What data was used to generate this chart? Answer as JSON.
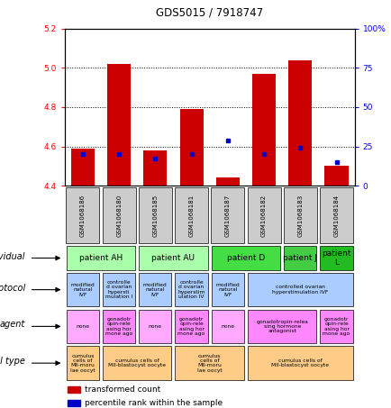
{
  "title": "GDS5015 / 7918747",
  "samples": [
    "GSM1068186",
    "GSM1068180",
    "GSM1068185",
    "GSM1068181",
    "GSM1068187",
    "GSM1068182",
    "GSM1068183",
    "GSM1068184"
  ],
  "bar_values": [
    4.59,
    5.02,
    4.58,
    4.79,
    4.44,
    4.97,
    5.04,
    4.5
  ],
  "bar_base": 4.4,
  "percentile_display": [
    20,
    20,
    17,
    20,
    29,
    20,
    24,
    15
  ],
  "ylim_left": [
    4.4,
    5.2
  ],
  "ylim_right": [
    0,
    100
  ],
  "yticks_left": [
    4.4,
    4.6,
    4.8,
    5.0,
    5.2
  ],
  "yticks_right": [
    0,
    25,
    50,
    75,
    100
  ],
  "ytick_labels_right": [
    "0",
    "25",
    "50",
    "75",
    "100%"
  ],
  "bar_color": "#cc0000",
  "percentile_color": "#0000cc",
  "bg_color": "#ffffff",
  "sample_bg_color": "#cccccc",
  "individual_row": {
    "label": "individual",
    "groups": [
      {
        "text": "patient AH",
        "span": [
          0,
          2
        ],
        "color": "#aaffaa"
      },
      {
        "text": "patient AU",
        "span": [
          2,
          4
        ],
        "color": "#aaffaa"
      },
      {
        "text": "patient D",
        "span": [
          4,
          6
        ],
        "color": "#44dd44"
      },
      {
        "text": "patient J",
        "span": [
          6,
          7
        ],
        "color": "#44cc44"
      },
      {
        "text": "patient\nL",
        "span": [
          7,
          8
        ],
        "color": "#22bb22"
      }
    ]
  },
  "protocol_row": {
    "label": "protocol",
    "groups": [
      {
        "text": "modified\nnatural\nIVF",
        "span": [
          0,
          1
        ],
        "color": "#aaccff"
      },
      {
        "text": "controlle\nd ovarian\nhypersti\nmulation I",
        "span": [
          1,
          2
        ],
        "color": "#aaccff"
      },
      {
        "text": "modified\nnatural\nIVF",
        "span": [
          2,
          3
        ],
        "color": "#aaccff"
      },
      {
        "text": "controlle\nd ovarian\nhyperstim\nulation IV",
        "span": [
          3,
          4
        ],
        "color": "#aaccff"
      },
      {
        "text": "modified\nnatural\nIVF",
        "span": [
          4,
          5
        ],
        "color": "#aaccff"
      },
      {
        "text": "controlled ovarian\nhyperstimulation IVF",
        "span": [
          5,
          8
        ],
        "color": "#aaccff"
      }
    ]
  },
  "agent_row": {
    "label": "agent",
    "groups": [
      {
        "text": "none",
        "span": [
          0,
          1
        ],
        "color": "#ffaaff"
      },
      {
        "text": "gonadotr\nopin-rele\nasing hor\nmone ago",
        "span": [
          1,
          2
        ],
        "color": "#ff88ff"
      },
      {
        "text": "none",
        "span": [
          2,
          3
        ],
        "color": "#ffaaff"
      },
      {
        "text": "gonadotr\nopin-rele\nasing hor\nmone ago",
        "span": [
          3,
          4
        ],
        "color": "#ff88ff"
      },
      {
        "text": "none",
        "span": [
          4,
          5
        ],
        "color": "#ffaaff"
      },
      {
        "text": "gonadotropin-relea\nsing hormone\nantagonist",
        "span": [
          5,
          7
        ],
        "color": "#ff88ff"
      },
      {
        "text": "gonadotr\nopin-rele\nasing hor\nmone ago",
        "span": [
          7,
          8
        ],
        "color": "#ff88ff"
      }
    ]
  },
  "celltype_row": {
    "label": "cell type",
    "groups": [
      {
        "text": "cumulus\ncells of\nMII-moru\nlae oocyt",
        "span": [
          0,
          1
        ],
        "color": "#ffcc88"
      },
      {
        "text": "cumulus cells of\nMII-blastocyst oocyte",
        "span": [
          1,
          3
        ],
        "color": "#ffcc88"
      },
      {
        "text": "cumulus\ncells of\nMII-moru\nlae oocyt",
        "span": [
          3,
          5
        ],
        "color": "#ffcc88"
      },
      {
        "text": "cumulus cells of\nMII-blastocyst oocyte",
        "span": [
          5,
          8
        ],
        "color": "#ffcc88"
      }
    ]
  }
}
